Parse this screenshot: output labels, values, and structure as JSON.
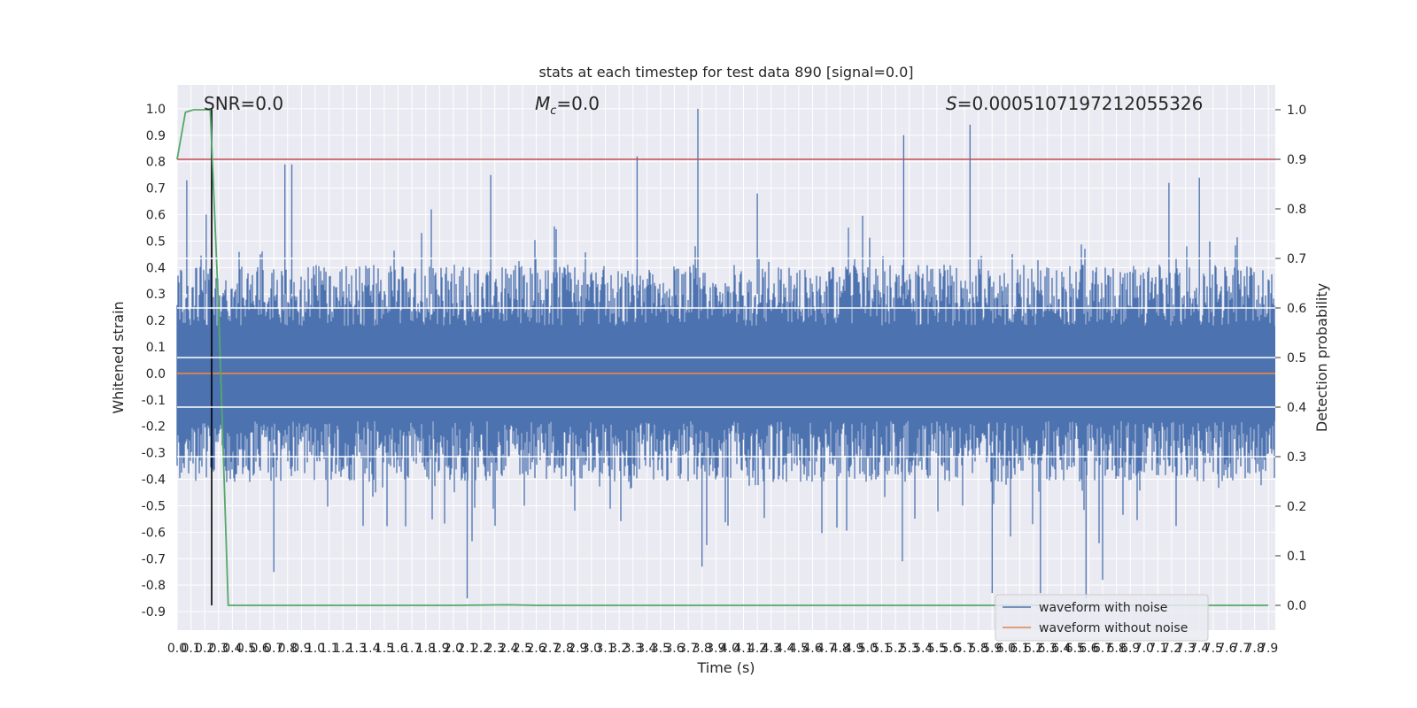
{
  "chart_data": {
    "type": "line",
    "title": "stats at each timestep for test data 890 [signal=0.0]",
    "xlabel": "Time (s)",
    "ylabel_left": "Whitened strain",
    "ylabel_right": "Detection probability",
    "xlim": [
      0.0,
      7.95
    ],
    "ylim_left": [
      -0.97,
      1.09
    ],
    "ylim_right": [
      -0.05,
      1.05
    ],
    "x_ticks": [
      "0.0",
      "0.1",
      "0.2",
      "0.3",
      "0.4",
      "0.5",
      "0.6",
      "0.7",
      "0.8",
      "0.9",
      "1.0",
      "1.1",
      "1.2",
      "1.3",
      "1.4",
      "1.5",
      "1.6",
      "1.7",
      "1.8",
      "1.9",
      "2.0",
      "2.1",
      "2.2",
      "2.3",
      "2.4",
      "2.5",
      "2.6",
      "2.7",
      "2.8",
      "2.9",
      "3.0",
      "3.1",
      "3.2",
      "3.3",
      "3.4",
      "3.5",
      "3.6",
      "3.7",
      "3.8",
      "3.9",
      "4.0",
      "4.1",
      "4.2",
      "4.3",
      "4.4",
      "4.5",
      "4.6",
      "4.7",
      "4.8",
      "4.9",
      "5.0",
      "5.1",
      "5.2",
      "5.3",
      "5.4",
      "5.5",
      "5.6",
      "5.7",
      "5.8",
      "5.9",
      "6.0",
      "6.1",
      "6.2",
      "6.3",
      "6.4",
      "6.5",
      "6.6",
      "6.7",
      "6.8",
      "6.9",
      "7.0",
      "7.1",
      "7.2",
      "7.3",
      "7.4",
      "7.5",
      "7.6",
      "7.7",
      "7.8",
      "7.9"
    ],
    "y_ticks_left": [
      "1.0",
      "0.9",
      "0.8",
      "0.7",
      "0.6",
      "0.5",
      "0.4",
      "0.3",
      "0.2",
      "0.1",
      "0.0",
      "-0.1",
      "-0.2",
      "-0.3",
      "-0.4",
      "-0.5",
      "-0.6",
      "-0.7",
      "-0.8",
      "-0.9"
    ],
    "y_ticks_right": [
      "1.0",
      "0.9",
      "0.8",
      "0.7",
      "0.6",
      "0.5",
      "0.4",
      "0.3",
      "0.2",
      "0.1",
      "0.0"
    ],
    "annotations": {
      "snr": "SNR=0.0",
      "mc_symbol": "M",
      "mc_sub": "c",
      "mc_value": "=0.0",
      "s_symbol": "S",
      "s_value": "=0.0005107197212055326"
    },
    "threshold_right": 0.9,
    "marker_x": 0.25,
    "detection_probability": {
      "x": [
        0.0,
        0.06,
        0.12,
        0.18,
        0.24,
        0.3,
        0.37,
        0.45,
        1.0,
        2.0,
        2.4,
        2.6,
        3.0,
        4.0,
        5.0,
        6.0,
        7.0,
        7.9
      ],
      "y": [
        0.9,
        0.995,
        1.0,
        1.0,
        1.0,
        0.6,
        0.0,
        0.0,
        0.0,
        0.0,
        0.001,
        0.0,
        0.0,
        0.0,
        0.0,
        0.0,
        0.0,
        0.0
      ]
    },
    "noise_envelope": {
      "upper": 0.4,
      "lower": -0.4,
      "upper_spikes": [
        [
          0.07,
          0.73
        ],
        [
          0.21,
          0.6
        ],
        [
          0.25,
          1.0
        ],
        [
          0.78,
          0.79
        ],
        [
          0.83,
          0.79
        ],
        [
          1.84,
          0.62
        ],
        [
          2.27,
          0.75
        ],
        [
          3.33,
          0.82
        ],
        [
          3.77,
          1.0
        ],
        [
          4.2,
          0.68
        ],
        [
          5.26,
          0.9
        ],
        [
          5.74,
          0.94
        ],
        [
          7.18,
          0.72
        ],
        [
          7.4,
          0.74
        ]
      ],
      "lower_spikes": [
        [
          0.7,
          -0.75
        ],
        [
          2.1,
          -0.85
        ],
        [
          3.8,
          -0.73
        ],
        [
          5.25,
          -0.71
        ],
        [
          5.9,
          -0.83
        ],
        [
          6.25,
          -0.83
        ],
        [
          6.58,
          -0.85
        ],
        [
          6.7,
          -0.78
        ]
      ]
    },
    "series": [
      {
        "name": "waveform with noise",
        "color": "#4c72b0"
      },
      {
        "name": "waveform without noise",
        "color": "#dd8452",
        "value": 0.0
      }
    ],
    "colors": {
      "plot_bg": "#eaeaf2",
      "grid": "#ffffff",
      "detection": "#55a868",
      "threshold": "#c44e52",
      "marker": "#000000"
    },
    "legend_position": "lower right",
    "grid": true
  }
}
